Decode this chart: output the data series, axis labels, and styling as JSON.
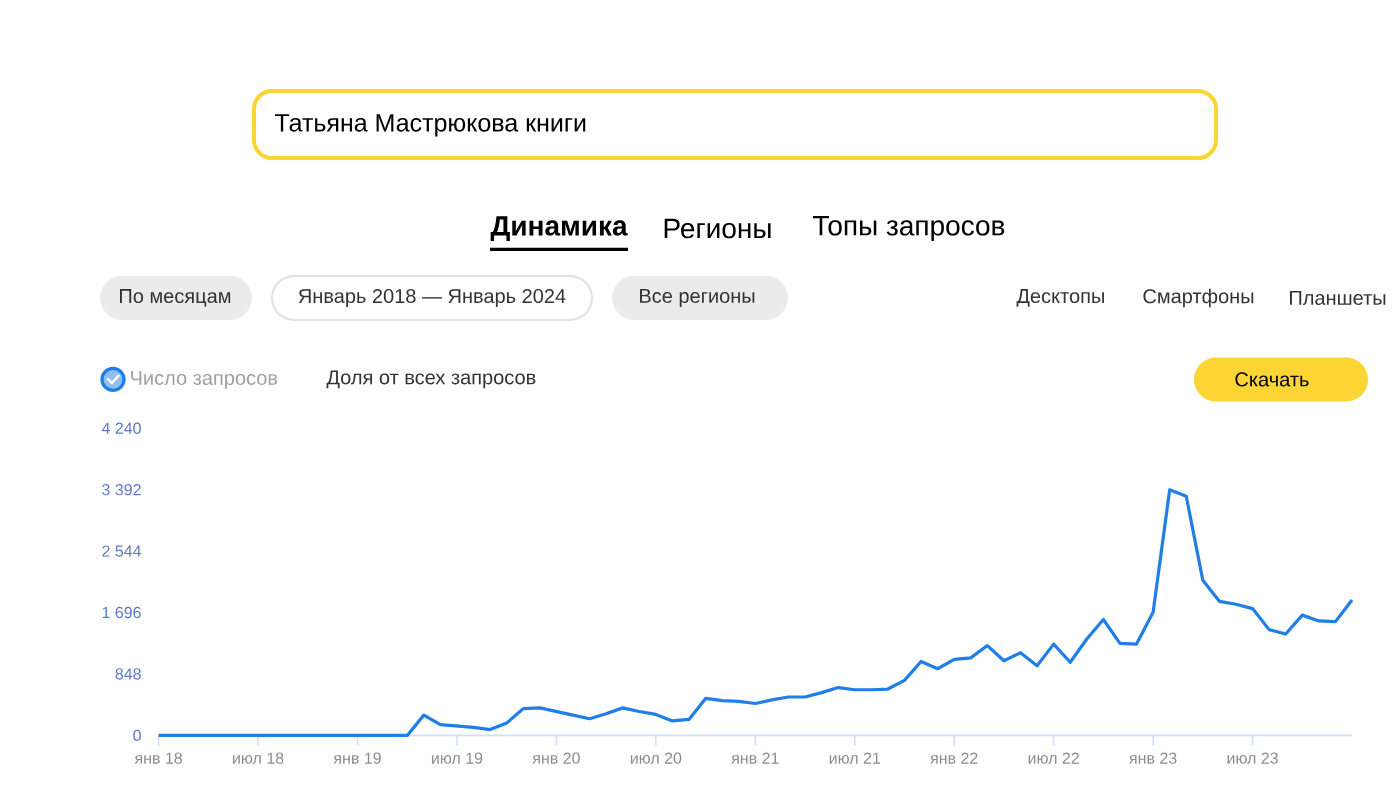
{
  "chart_data": {
    "type": "line",
    "title": "Татьяна Мастрюкова книги",
    "x": [
      "2018-01",
      "2018-02",
      "2018-03",
      "2018-04",
      "2018-05",
      "2018-06",
      "2018-07",
      "2018-08",
      "2018-09",
      "2018-10",
      "2018-11",
      "2018-12",
      "2019-01",
      "2019-02",
      "2019-03",
      "2019-04",
      "2019-05",
      "2019-06",
      "2019-07",
      "2019-08",
      "2019-09",
      "2019-10",
      "2019-11",
      "2019-12",
      "2020-01",
      "2020-02",
      "2020-03",
      "2020-04",
      "2020-05",
      "2020-06",
      "2020-07",
      "2020-08",
      "2020-09",
      "2020-10",
      "2020-11",
      "2020-12",
      "2021-01",
      "2021-02",
      "2021-03",
      "2021-04",
      "2021-05",
      "2021-06",
      "2021-07",
      "2021-08",
      "2021-09",
      "2021-10",
      "2021-11",
      "2021-12",
      "2022-01",
      "2022-02",
      "2022-03",
      "2022-04",
      "2022-05",
      "2022-06",
      "2022-07",
      "2022-08",
      "2022-09",
      "2022-10",
      "2022-11",
      "2022-12",
      "2023-01",
      "2023-02",
      "2023-03",
      "2023-04",
      "2023-05",
      "2023-06",
      "2023-07",
      "2023-08",
      "2023-09",
      "2023-10",
      "2023-11",
      "2023-12",
      "2024-01"
    ],
    "series": [
      {
        "name": "Число запросов",
        "color": "#1f7ee7",
        "values": [
          0,
          0,
          0,
          0,
          0,
          0,
          0,
          0,
          0,
          0,
          0,
          0,
          0,
          0,
          0,
          0,
          280,
          150,
          130,
          110,
          80,
          170,
          370,
          380,
          330,
          280,
          230,
          300,
          380,
          330,
          290,
          200,
          220,
          510,
          480,
          470,
          440,
          490,
          530,
          530,
          590,
          660,
          630,
          630,
          640,
          760,
          1020,
          920,
          1050,
          1070,
          1240,
          1030,
          1140,
          960,
          1260,
          1010,
          1330,
          1600,
          1270,
          1260,
          1700,
          3390,
          3300,
          2140,
          1850,
          1810,
          1750,
          1460,
          1400,
          1660,
          1580,
          1570,
          1870
        ]
      }
    ],
    "xlim": [
      "2018-01",
      "2024-01"
    ],
    "ylim": [
      0,
      4240
    ],
    "xticks": [
      {
        "value": "2018-01",
        "label": "янв 18"
      },
      {
        "value": "2018-07",
        "label": "июл 18"
      },
      {
        "value": "2019-01",
        "label": "янв 19"
      },
      {
        "value": "2019-07",
        "label": "июл 19"
      },
      {
        "value": "2020-01",
        "label": "янв 20"
      },
      {
        "value": "2020-07",
        "label": "июл 20"
      },
      {
        "value": "2021-01",
        "label": "янв 21"
      },
      {
        "value": "2021-07",
        "label": "июл 21"
      },
      {
        "value": "2022-01",
        "label": "янв 22"
      },
      {
        "value": "2022-07",
        "label": "июл 22"
      },
      {
        "value": "2023-01",
        "label": "янв 23"
      },
      {
        "value": "2023-07",
        "label": "июл 23"
      }
    ],
    "yticks": [
      0,
      848,
      {
        "value": 1696,
        "label": "1 696"
      },
      {
        "value": 2544,
        "label": "2 544"
      },
      {
        "value": 3392,
        "label": "3 392"
      },
      {
        "value": 4240,
        "label": "4 240"
      }
    ],
    "legend": "top left",
    "annotations": [
      "Динамика",
      "Регионы",
      "Топы запросов",
      "По месяцам",
      "Январь 2018 — Январь 2024",
      "Все регионы",
      "Десктопы",
      "Смартфоны",
      "Планшеты",
      "Доля от всех запросов",
      "Скачать"
    ]
  }
}
